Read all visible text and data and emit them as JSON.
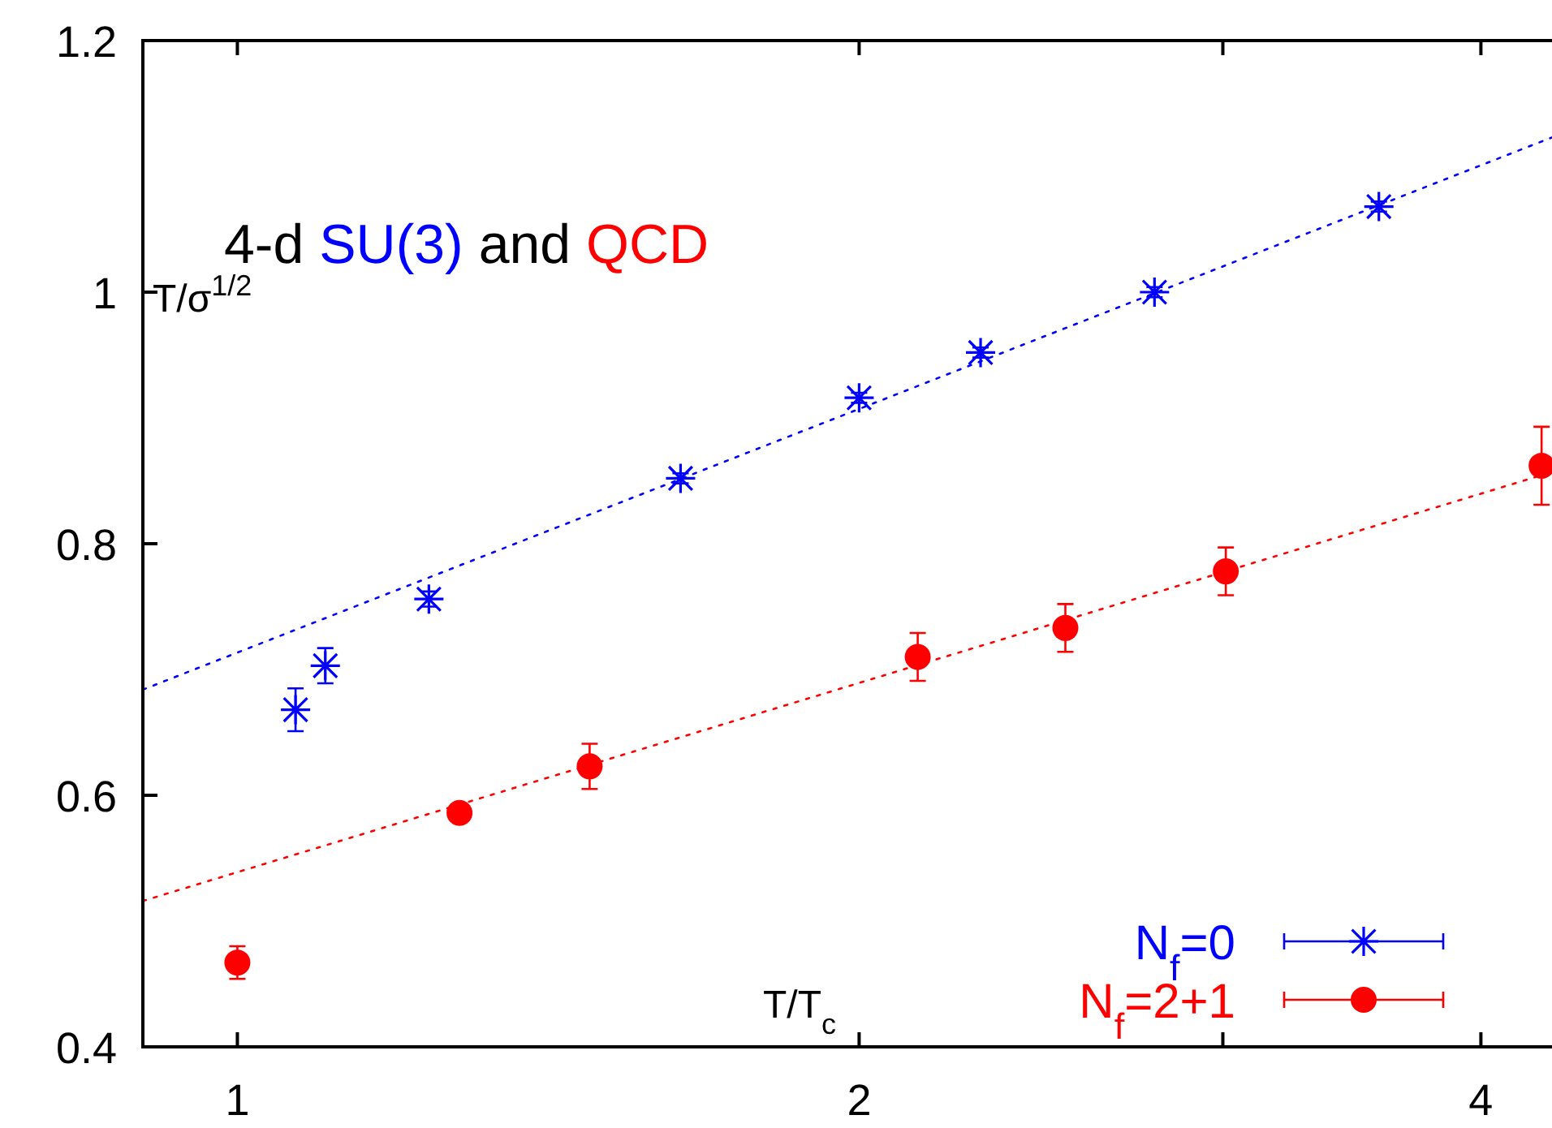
{
  "chart_data": {
    "type": "scatter",
    "xlabel": "T/T$_{c}$",
    "ylabel": "T/σ$^{1/2}$",
    "log": "x",
    "xlim": [
      0.9,
      4.33
    ],
    "ylim": [
      0.4,
      1.2
    ],
    "xticks": [
      1,
      2,
      {
        "value": 3,
        "label": null
      },
      4
    ],
    "yticks": [
      0.4,
      0.6,
      0.8,
      1,
      1.2
    ],
    "grid": false,
    "legend": "bottom right",
    "annotations": [
      "4-d SU(3) and QCD"
    ],
    "series": [
      {
        "name": "N$_{f}$=0",
        "marker": "cross",
        "color": "#0000ff",
        "x": [
          1.067,
          1.103,
          1.238,
          1.639,
          2,
          2.29,
          2.78,
          3.57
        ],
        "values": [
          0.668,
          0.703,
          0.756,
          0.852,
          0.916,
          0.952,
          1.0,
          1.068
        ],
        "errors": [
          0.017,
          0.014,
          0.006,
          0.004,
          0.004,
          0.004,
          0.004,
          0.004
        ]
      },
      {
        "name": "N$_{f}$=2+1",
        "marker": "circle",
        "color": "#ff0000",
        "x": [
          1,
          1.281,
          1.481,
          2.135,
          2.517,
          3.01,
          4.28
        ],
        "values": [
          0.467,
          0.586,
          0.623,
          0.71,
          0.733,
          0.778,
          0.862
        ],
        "errors": [
          0.013,
          null,
          0.018,
          0.019,
          0.019,
          0.019,
          0.031
        ]
      },
      {
        "type": "line",
        "line_style": "dotted",
        "marker": "none",
        "color": "#0000ff",
        "x": [
          0.9,
          4.33
        ],
        "values": [
          0.684,
          1.123
        ]
      },
      {
        "type": "line",
        "line_style": "dotted",
        "marker": "none",
        "color": "#ff0000",
        "x": [
          0.9,
          4.33
        ],
        "values": [
          0.516,
          0.857
        ]
      }
    ]
  }
}
